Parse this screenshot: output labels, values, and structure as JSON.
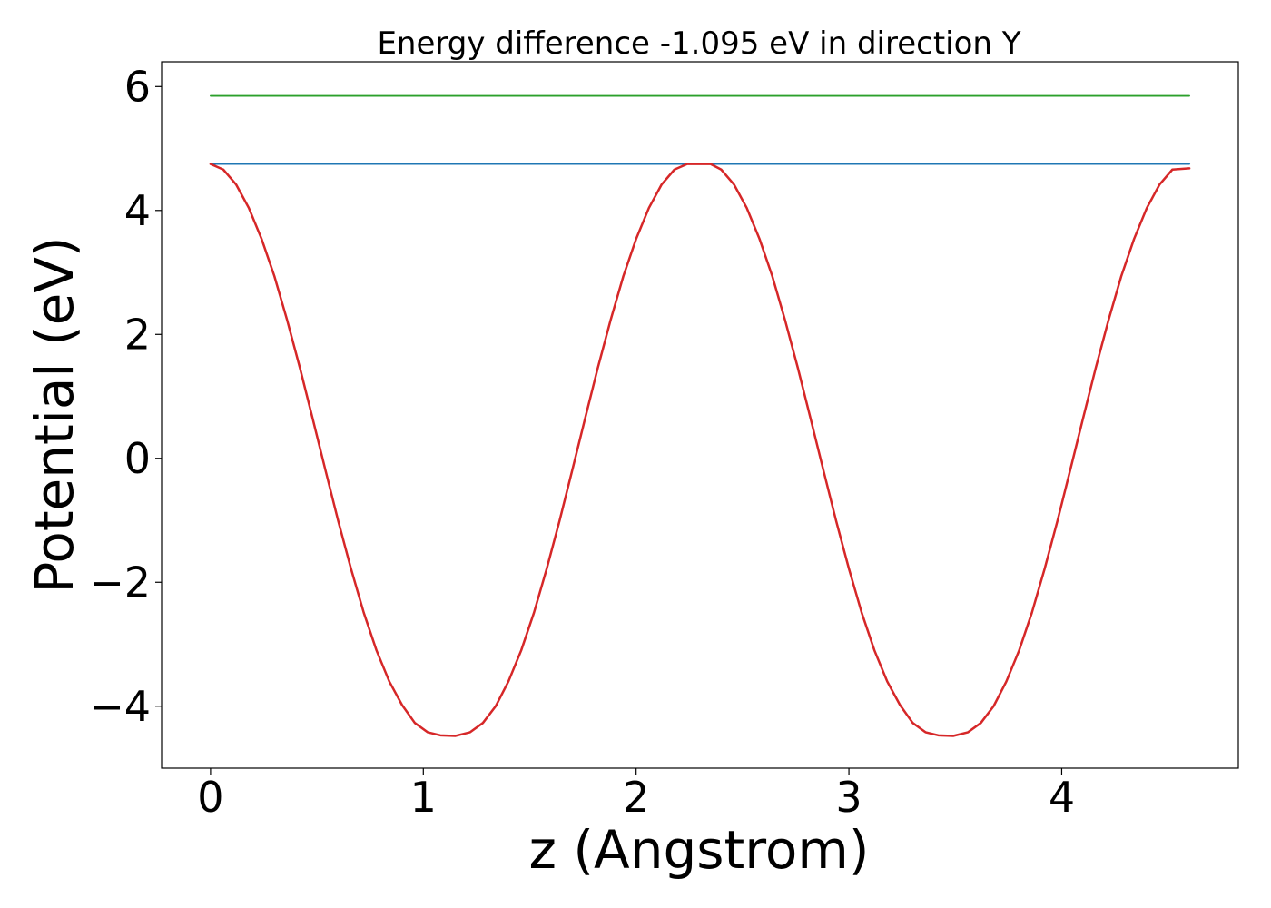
{
  "chart_data": {
    "type": "line",
    "title": "Energy difference -1.095 eV in direction Y",
    "xlabel": "z (Angstrom)",
    "ylabel": "Potential (eV)",
    "xlim": [
      -0.23,
      4.83
    ],
    "ylim": [
      -5.0,
      6.4
    ],
    "xticks": [
      0,
      1,
      2,
      3,
      4
    ],
    "xtick_labels": [
      "0",
      "1",
      "2",
      "3",
      "4"
    ],
    "yticks": [
      -4,
      -2,
      0,
      2,
      4,
      6
    ],
    "ytick_labels": [
      "−4",
      "−2",
      "0",
      "2",
      "4",
      "6"
    ],
    "grid": false,
    "series": [
      {
        "color": "#2ca02c",
        "x": [
          0,
          4.6
        ],
        "y": [
          5.85,
          5.85
        ]
      },
      {
        "color": "#1f77b4",
        "x": [
          0,
          4.6
        ],
        "y": [
          4.75,
          4.75
        ]
      },
      {
        "color": "#d62728",
        "x": [
          0,
          0.06,
          0.12,
          0.18,
          0.24,
          0.3,
          0.36,
          0.42,
          0.48,
          0.54,
          0.6,
          0.66,
          0.72,
          0.78,
          0.84,
          0.9,
          0.96,
          1.02,
          1.08,
          1.15,
          1.22,
          1.28,
          1.34,
          1.4,
          1.46,
          1.52,
          1.58,
          1.64,
          1.7,
          1.76,
          1.82,
          1.88,
          1.94,
          2.0,
          2.06,
          2.12,
          2.18,
          2.24,
          2.3,
          2.35,
          2.4,
          2.46,
          2.52,
          2.58,
          2.64,
          2.7,
          2.76,
          2.82,
          2.88,
          2.94,
          3.0,
          3.06,
          3.12,
          3.18,
          3.24,
          3.3,
          3.36,
          3.42,
          3.49,
          3.56,
          3.62,
          3.68,
          3.74,
          3.8,
          3.86,
          3.92,
          3.98,
          4.04,
          4.1,
          4.16,
          4.22,
          4.28,
          4.34,
          4.4,
          4.46,
          4.52,
          4.6
        ],
        "y": [
          4.75,
          4.66,
          4.42,
          4.04,
          3.54,
          2.94,
          2.23,
          1.46,
          0.64,
          -0.19,
          -1.01,
          -1.78,
          -2.49,
          -3.1,
          -3.6,
          -3.98,
          -4.27,
          -4.42,
          -4.47,
          -4.48,
          -4.42,
          -4.27,
          -4.0,
          -3.6,
          -3.1,
          -2.49,
          -1.78,
          -1.01,
          -0.19,
          0.64,
          1.46,
          2.23,
          2.94,
          3.54,
          4.04,
          4.42,
          4.66,
          4.75,
          4.75,
          4.75,
          4.66,
          4.42,
          4.04,
          3.54,
          2.94,
          2.23,
          1.46,
          0.64,
          -0.19,
          -1.01,
          -1.78,
          -2.49,
          -3.1,
          -3.6,
          -3.98,
          -4.27,
          -4.42,
          -4.47,
          -4.48,
          -4.42,
          -4.27,
          -4.0,
          -3.6,
          -3.1,
          -2.49,
          -1.78,
          -1.01,
          -0.19,
          0.64,
          1.46,
          2.23,
          2.94,
          3.54,
          4.04,
          4.42,
          4.66,
          4.68
        ]
      }
    ]
  }
}
